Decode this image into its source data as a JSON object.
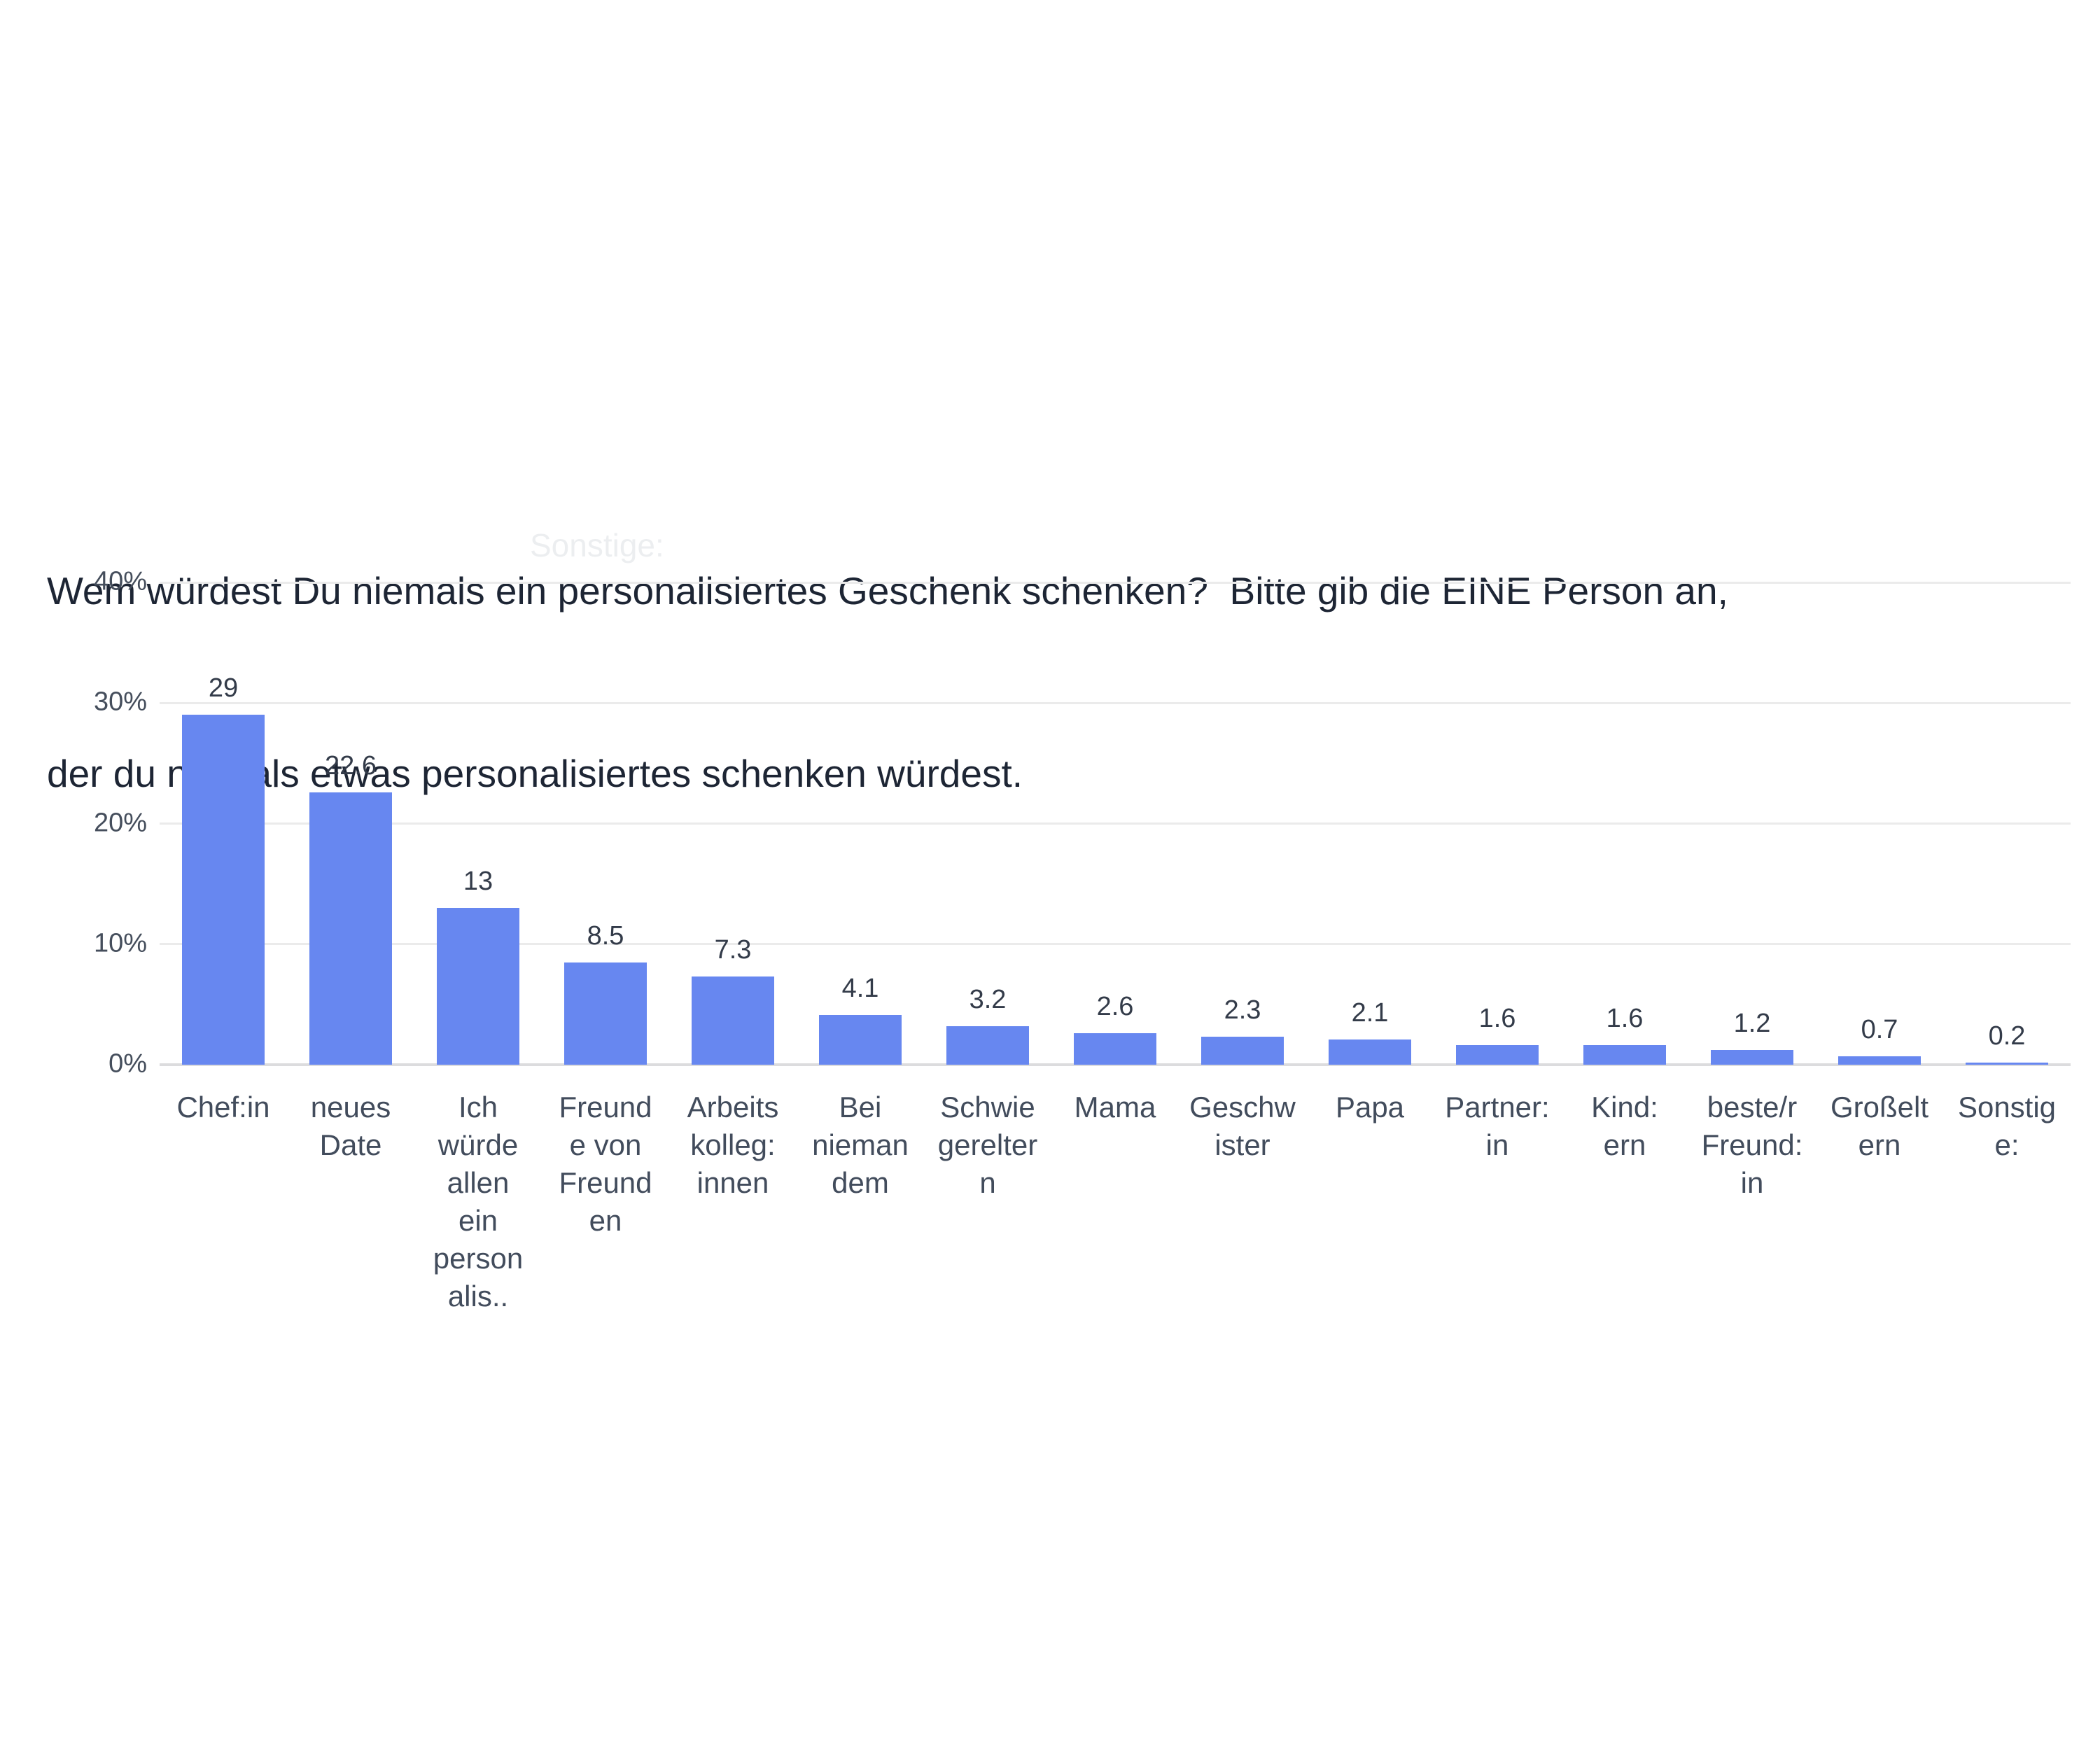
{
  "title": {
    "line1": "Wem würdest Du niemals ein personalisiertes Geschenk schenken?  Bitte gib die EINE Person an,",
    "line2": "der du niemals etwas personalisiertes schenken würdest.",
    "full": "Wem würdest Du niemals ein personalisiertes Geschenk schenken? Bitte gib die EINE Person an, der du niemals etwas personalisiertes schenken würdest."
  },
  "ghost_text": "Sonstige:",
  "colors": {
    "bar": "#6787f0",
    "title_text": "#1d2534",
    "tick_text": "#454e5c",
    "category_text": "#424c5c",
    "value_text": "#333b49",
    "gridline": "#ebebeb",
    "baseline": "#dcdcde",
    "background": "#ffffff"
  },
  "chart_data": {
    "type": "bar",
    "title": "Wem würdest Du niemals ein personalisiertes Geschenk schenken? Bitte gib die EINE Person an, der du niemals etwas personalisiertes schenken würdest.",
    "xlabel": "",
    "ylabel": "",
    "ylim": [
      0,
      40
    ],
    "grid": true,
    "legend": false,
    "categories": [
      "Chef:in",
      "neues Date",
      "Ich würde allen ein personalis..",
      "Freunde von Freunden",
      "Arbeitskolleg:innen",
      "Bei niemandem",
      "Schwiegereltern",
      "Mama",
      "Geschwister",
      "Papa",
      "Partner:in",
      "Kind:ern",
      "beste/r Freund:in",
      "Großeltern",
      "Sonstige:"
    ],
    "category_label_lines": [
      [
        "Chef:in"
      ],
      [
        "neues",
        "Date"
      ],
      [
        "Ich",
        "würde",
        "allen",
        "ein",
        "person",
        "alis.."
      ],
      [
        "Freund",
        "e von",
        "Freund",
        "en"
      ],
      [
        "Arbeits",
        "kolleg:",
        "innen"
      ],
      [
        "Bei",
        "nieman",
        "dem"
      ],
      [
        "Schwie",
        "gerelter",
        "n"
      ],
      [
        "Mama"
      ],
      [
        "Geschw",
        "ister"
      ],
      [
        "Papa"
      ],
      [
        "Partner:",
        "in"
      ],
      [
        "Kind:",
        "ern"
      ],
      [
        "beste/r",
        "Freund:",
        "in"
      ],
      [
        "Großelt",
        "ern"
      ],
      [
        "Sonstig",
        "e:"
      ]
    ],
    "values": [
      29,
      22.6,
      13,
      8.5,
      7.3,
      4.1,
      3.2,
      2.6,
      2.3,
      2.1,
      1.6,
      1.6,
      1.2,
      0.7,
      0.2
    ],
    "value_labels": [
      "29",
      "22.6",
      "13",
      "8.5",
      "7.3",
      "4.1",
      "3.2",
      "2.6",
      "2.3",
      "2.1",
      "1.6",
      "1.6",
      "1.2",
      "0.7",
      "0.2"
    ],
    "yticks": [
      {
        "value": 40,
        "label": "40%"
      },
      {
        "value": 30,
        "label": "30%"
      },
      {
        "value": 20,
        "label": "20%"
      },
      {
        "value": 10,
        "label": "10%"
      },
      {
        "value": 0,
        "label": "0%"
      }
    ]
  }
}
